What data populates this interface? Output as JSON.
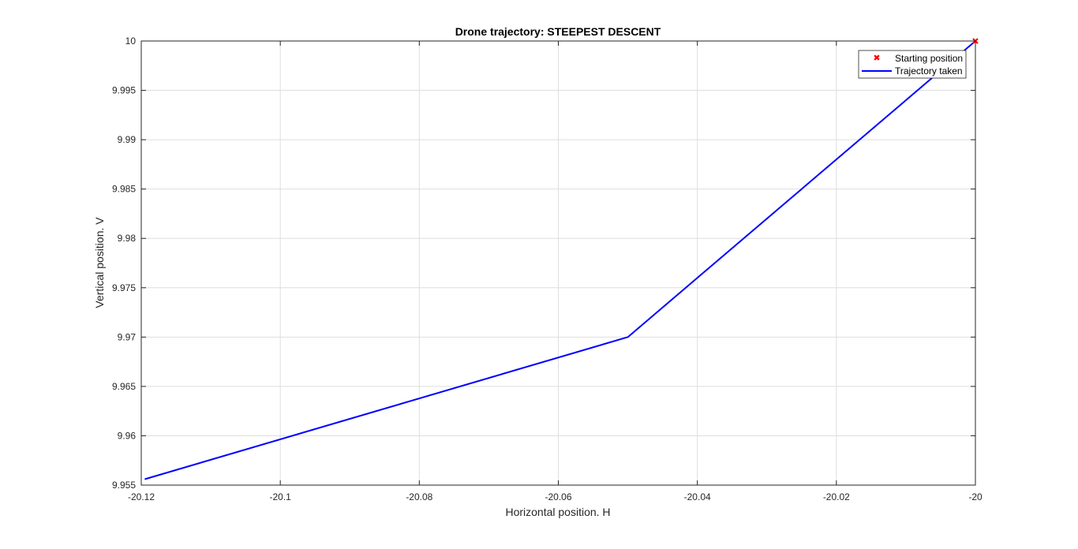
{
  "chart_data": {
    "type": "line",
    "title": "Drone trajectory: STEEPEST DESCENT",
    "xlabel": "Horizontal position. H",
    "ylabel": "Vertical position. V",
    "xlim": [
      -20.12,
      -20.0
    ],
    "ylim": [
      9.955,
      10.0
    ],
    "xticks": [
      -20.12,
      -20.1,
      -20.08,
      -20.06,
      -20.04,
      -20.02,
      -20.0
    ],
    "xtick_labels": [
      "-20.12",
      "-20.1",
      "-20.08",
      "-20.06",
      "-20.04",
      "-20.02",
      "-20"
    ],
    "yticks": [
      9.955,
      9.96,
      9.965,
      9.97,
      9.975,
      9.98,
      9.985,
      9.99,
      9.995,
      10.0
    ],
    "ytick_labels": [
      "9.955",
      "9.96",
      "9.965",
      "9.97",
      "9.975",
      "9.98",
      "9.985",
      "9.99",
      "9.995",
      "10"
    ],
    "grid": true,
    "legend_position": "top-right",
    "series": [
      {
        "name": "Starting position",
        "kind": "marker",
        "marker": "x",
        "color": "#ff0000",
        "points": [
          [
            -20.0,
            10.0
          ]
        ]
      },
      {
        "name": "Trajectory taken",
        "kind": "line",
        "color": "#0000ff",
        "points": [
          [
            -20.0,
            10.0
          ],
          [
            -20.05,
            9.97
          ],
          [
            -20.1195,
            9.9556
          ]
        ]
      }
    ]
  }
}
